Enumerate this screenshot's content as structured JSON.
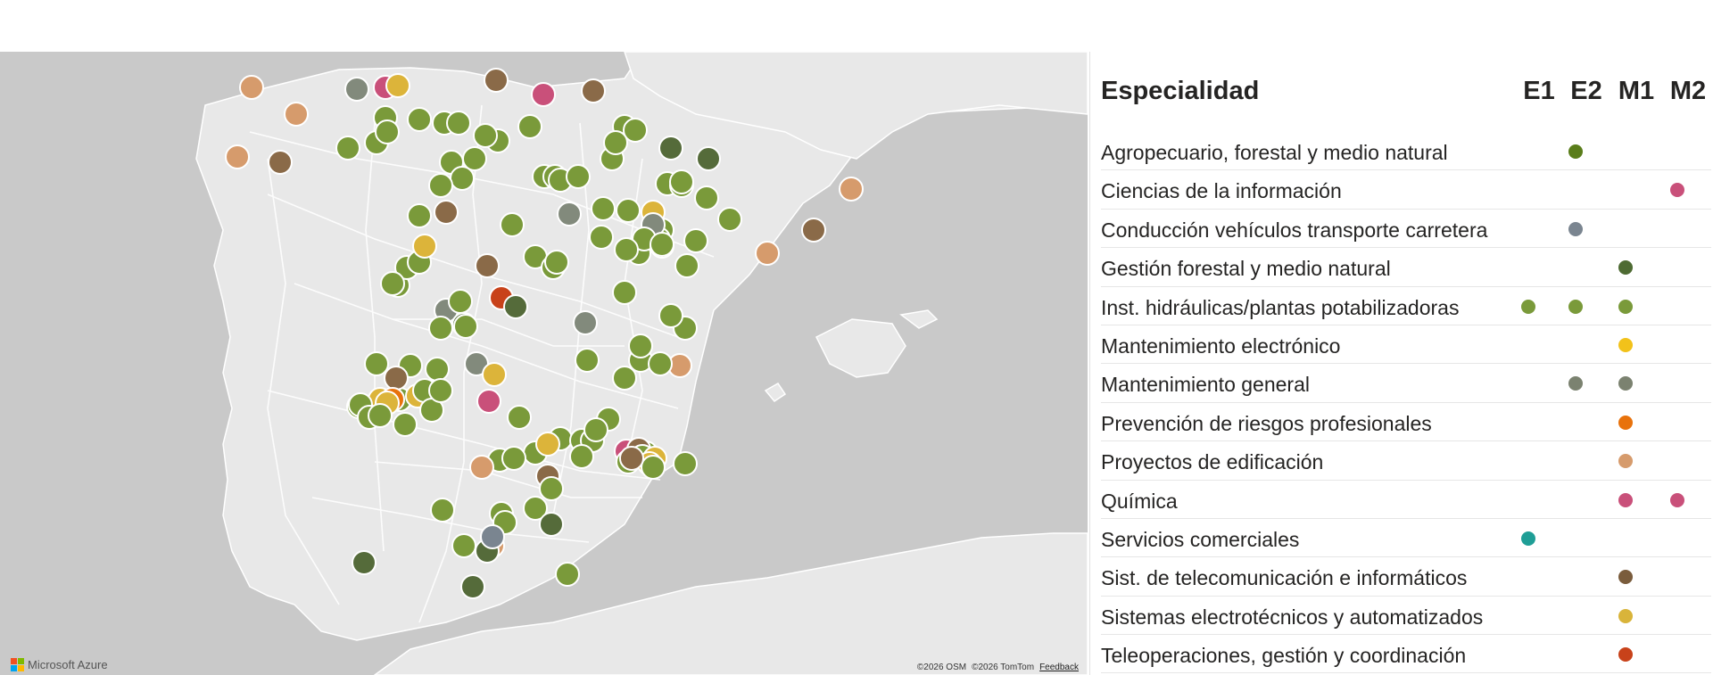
{
  "legend": {
    "title": "Especialidad",
    "columns": [
      "E1",
      "E2",
      "M1",
      "M2"
    ],
    "rows": [
      {
        "label": "Agropecuario, forestal y medio natural",
        "marks": {
          "E2": "#5a7d1a"
        }
      },
      {
        "label": "Ciencias de la información",
        "marks": {
          "M2": "#c9507a"
        }
      },
      {
        "label": "Conducción vehículos transporte carretera",
        "marks": {
          "E2": "#7a8590"
        }
      },
      {
        "label": "Gestión forestal y medio natural",
        "marks": {
          "M1": "#4e6b33"
        }
      },
      {
        "label": "Inst. hidráulicas/plantas potabilizadoras",
        "marks": {
          "E1": "#7a9a3a",
          "E2": "#7a9a3a",
          "M1": "#7a9a3a"
        }
      },
      {
        "label": "Mantenimiento electrónico",
        "marks": {
          "M1": "#f2c21a"
        }
      },
      {
        "label": "Mantenimiento general",
        "marks": {
          "E2": "#7b8270",
          "M1": "#7b8270"
        }
      },
      {
        "label": "Prevención de riesgos profesionales",
        "marks": {
          "M1": "#e8720c"
        }
      },
      {
        "label": "Proyectos de edificación",
        "marks": {
          "M1": "#d69b6c"
        }
      },
      {
        "label": "Química",
        "marks": {
          "M1": "#c9507a",
          "M2": "#c9507a"
        }
      },
      {
        "label": "Servicios comerciales",
        "marks": {
          "E1": "#1f9e96"
        }
      },
      {
        "label": "Sist. de telecomunicación e informáticos",
        "marks": {
          "M1": "#7a5c3c"
        }
      },
      {
        "label": "Sistemas electrotécnicos y automatizados",
        "marks": {
          "M1": "#d9b43a"
        }
      },
      {
        "label": "Teleoperaciones, gestión y coordinación",
        "marks": {
          "M1": "#c8421a"
        }
      }
    ]
  },
  "map": {
    "brand": "Microsoft Azure",
    "attribution": [
      "©2026 OSM",
      "©2026 TomTom"
    ],
    "feedback_label": "Feedback",
    "colors": {
      "sea": "#c9c9c9",
      "land": "#e9e9e9",
      "agro": "#7a9a3a",
      "dark_green": "#556b3a",
      "brown": "#8a6a48",
      "tan": "#d69b6c",
      "grey": "#828a7c",
      "slate": "#7a8590",
      "yellow": "#dcb43a",
      "orange": "#e8720c",
      "red": "#c8421a",
      "pink": "#c9507a"
    },
    "markers": [
      {
        "c": "tan"
      },
      {
        "c": "grey"
      },
      {
        "c": "pink"
      },
      {
        "c": "yellow"
      },
      {
        "c": "brown"
      },
      {
        "c": "pink"
      },
      {
        "c": "brown"
      },
      {
        "c": "tan"
      },
      {
        "c": "agro"
      },
      {
        "c": "agro"
      },
      {
        "c": "agro"
      },
      {
        "c": "agro"
      },
      {
        "c": "agro"
      },
      {
        "c": "agro"
      },
      {
        "c": "tan"
      },
      {
        "c": "brown"
      },
      {
        "c": "agro"
      },
      {
        "c": "agro"
      },
      {
        "c": "agro"
      },
      {
        "c": "agro"
      },
      {
        "c": "agro"
      },
      {
        "c": "agro"
      },
      {
        "c": "agro"
      },
      {
        "c": "agro"
      },
      {
        "c": "dark_green"
      },
      {
        "c": "dark_green"
      },
      {
        "c": "agro"
      },
      {
        "c": "agro"
      },
      {
        "c": "agro"
      },
      {
        "c": "agro"
      },
      {
        "c": "agro"
      },
      {
        "c": "agro"
      },
      {
        "c": "agro"
      },
      {
        "c": "agro"
      },
      {
        "c": "agro"
      },
      {
        "c": "agro"
      },
      {
        "c": "tan"
      },
      {
        "c": "brown"
      },
      {
        "c": "tan"
      },
      {
        "c": "agro"
      },
      {
        "c": "brown"
      },
      {
        "c": "agro"
      },
      {
        "c": "grey"
      },
      {
        "c": "yellow"
      },
      {
        "c": "agro"
      },
      {
        "c": "agro"
      },
      {
        "c": "agro"
      },
      {
        "c": "agro"
      },
      {
        "c": "agro"
      },
      {
        "c": "agro"
      },
      {
        "c": "agro"
      },
      {
        "c": "grey"
      },
      {
        "c": "agro"
      },
      {
        "c": "agro"
      },
      {
        "c": "agro"
      },
      {
        "c": "agro"
      },
      {
        "c": "agro"
      },
      {
        "c": "agro"
      },
      {
        "c": "agro"
      },
      {
        "c": "agro"
      },
      {
        "c": "brown"
      },
      {
        "c": "agro"
      },
      {
        "c": "agro"
      },
      {
        "c": "agro"
      },
      {
        "c": "agro"
      },
      {
        "c": "yellow"
      },
      {
        "c": "agro"
      },
      {
        "c": "red"
      },
      {
        "c": "dark_green"
      },
      {
        "c": "agro"
      },
      {
        "c": "agro"
      },
      {
        "c": "grey"
      },
      {
        "c": "dark_green"
      },
      {
        "c": "agro"
      },
      {
        "c": "agro"
      },
      {
        "c": "grey"
      },
      {
        "c": "agro"
      },
      {
        "c": "agro"
      },
      {
        "c": "agro"
      },
      {
        "c": "agro"
      },
      {
        "c": "agro"
      },
      {
        "c": "agro"
      },
      {
        "c": "agro"
      },
      {
        "c": "agro"
      },
      {
        "c": "agro"
      },
      {
        "c": "tan"
      },
      {
        "c": "agro"
      },
      {
        "c": "agro"
      },
      {
        "c": "agro"
      },
      {
        "c": "agro"
      },
      {
        "c": "grey"
      },
      {
        "c": "yellow"
      },
      {
        "c": "pink"
      },
      {
        "c": "agro"
      },
      {
        "c": "agro"
      },
      {
        "c": "yellow"
      },
      {
        "c": "brown"
      },
      {
        "c": "orange"
      },
      {
        "c": "agro"
      },
      {
        "c": "yellow"
      },
      {
        "c": "yellow"
      },
      {
        "c": "agro"
      },
      {
        "c": "agro"
      },
      {
        "c": "agro"
      },
      {
        "c": "agro"
      },
      {
        "c": "agro"
      },
      {
        "c": "agro"
      },
      {
        "c": "agro"
      },
      {
        "c": "agro"
      },
      {
        "c": "agro"
      },
      {
        "c": "agro"
      },
      {
        "c": "agro"
      },
      {
        "c": "agro"
      },
      {
        "c": "agro"
      },
      {
        "c": "agro"
      },
      {
        "c": "pink"
      },
      {
        "c": "agro"
      },
      {
        "c": "brown"
      },
      {
        "c": "agro"
      },
      {
        "c": "agro"
      },
      {
        "c": "yellow"
      },
      {
        "c": "yellow"
      },
      {
        "c": "agro"
      },
      {
        "c": "agro"
      },
      {
        "c": "brown"
      },
      {
        "c": "agro"
      },
      {
        "c": "agro"
      },
      {
        "c": "yellow"
      },
      {
        "c": "agro"
      },
      {
        "c": "brown"
      },
      {
        "c": "agro"
      },
      {
        "c": "agro"
      },
      {
        "c": "tan"
      },
      {
        "c": "agro"
      },
      {
        "c": "agro"
      },
      {
        "c": "agro"
      },
      {
        "c": "dark_green"
      },
      {
        "c": "agro"
      },
      {
        "c": "tan"
      },
      {
        "c": "dark_green"
      },
      {
        "c": "dark_green"
      },
      {
        "c": "slate"
      },
      {
        "c": "agro"
      },
      {
        "c": "dark_green"
      }
    ]
  }
}
